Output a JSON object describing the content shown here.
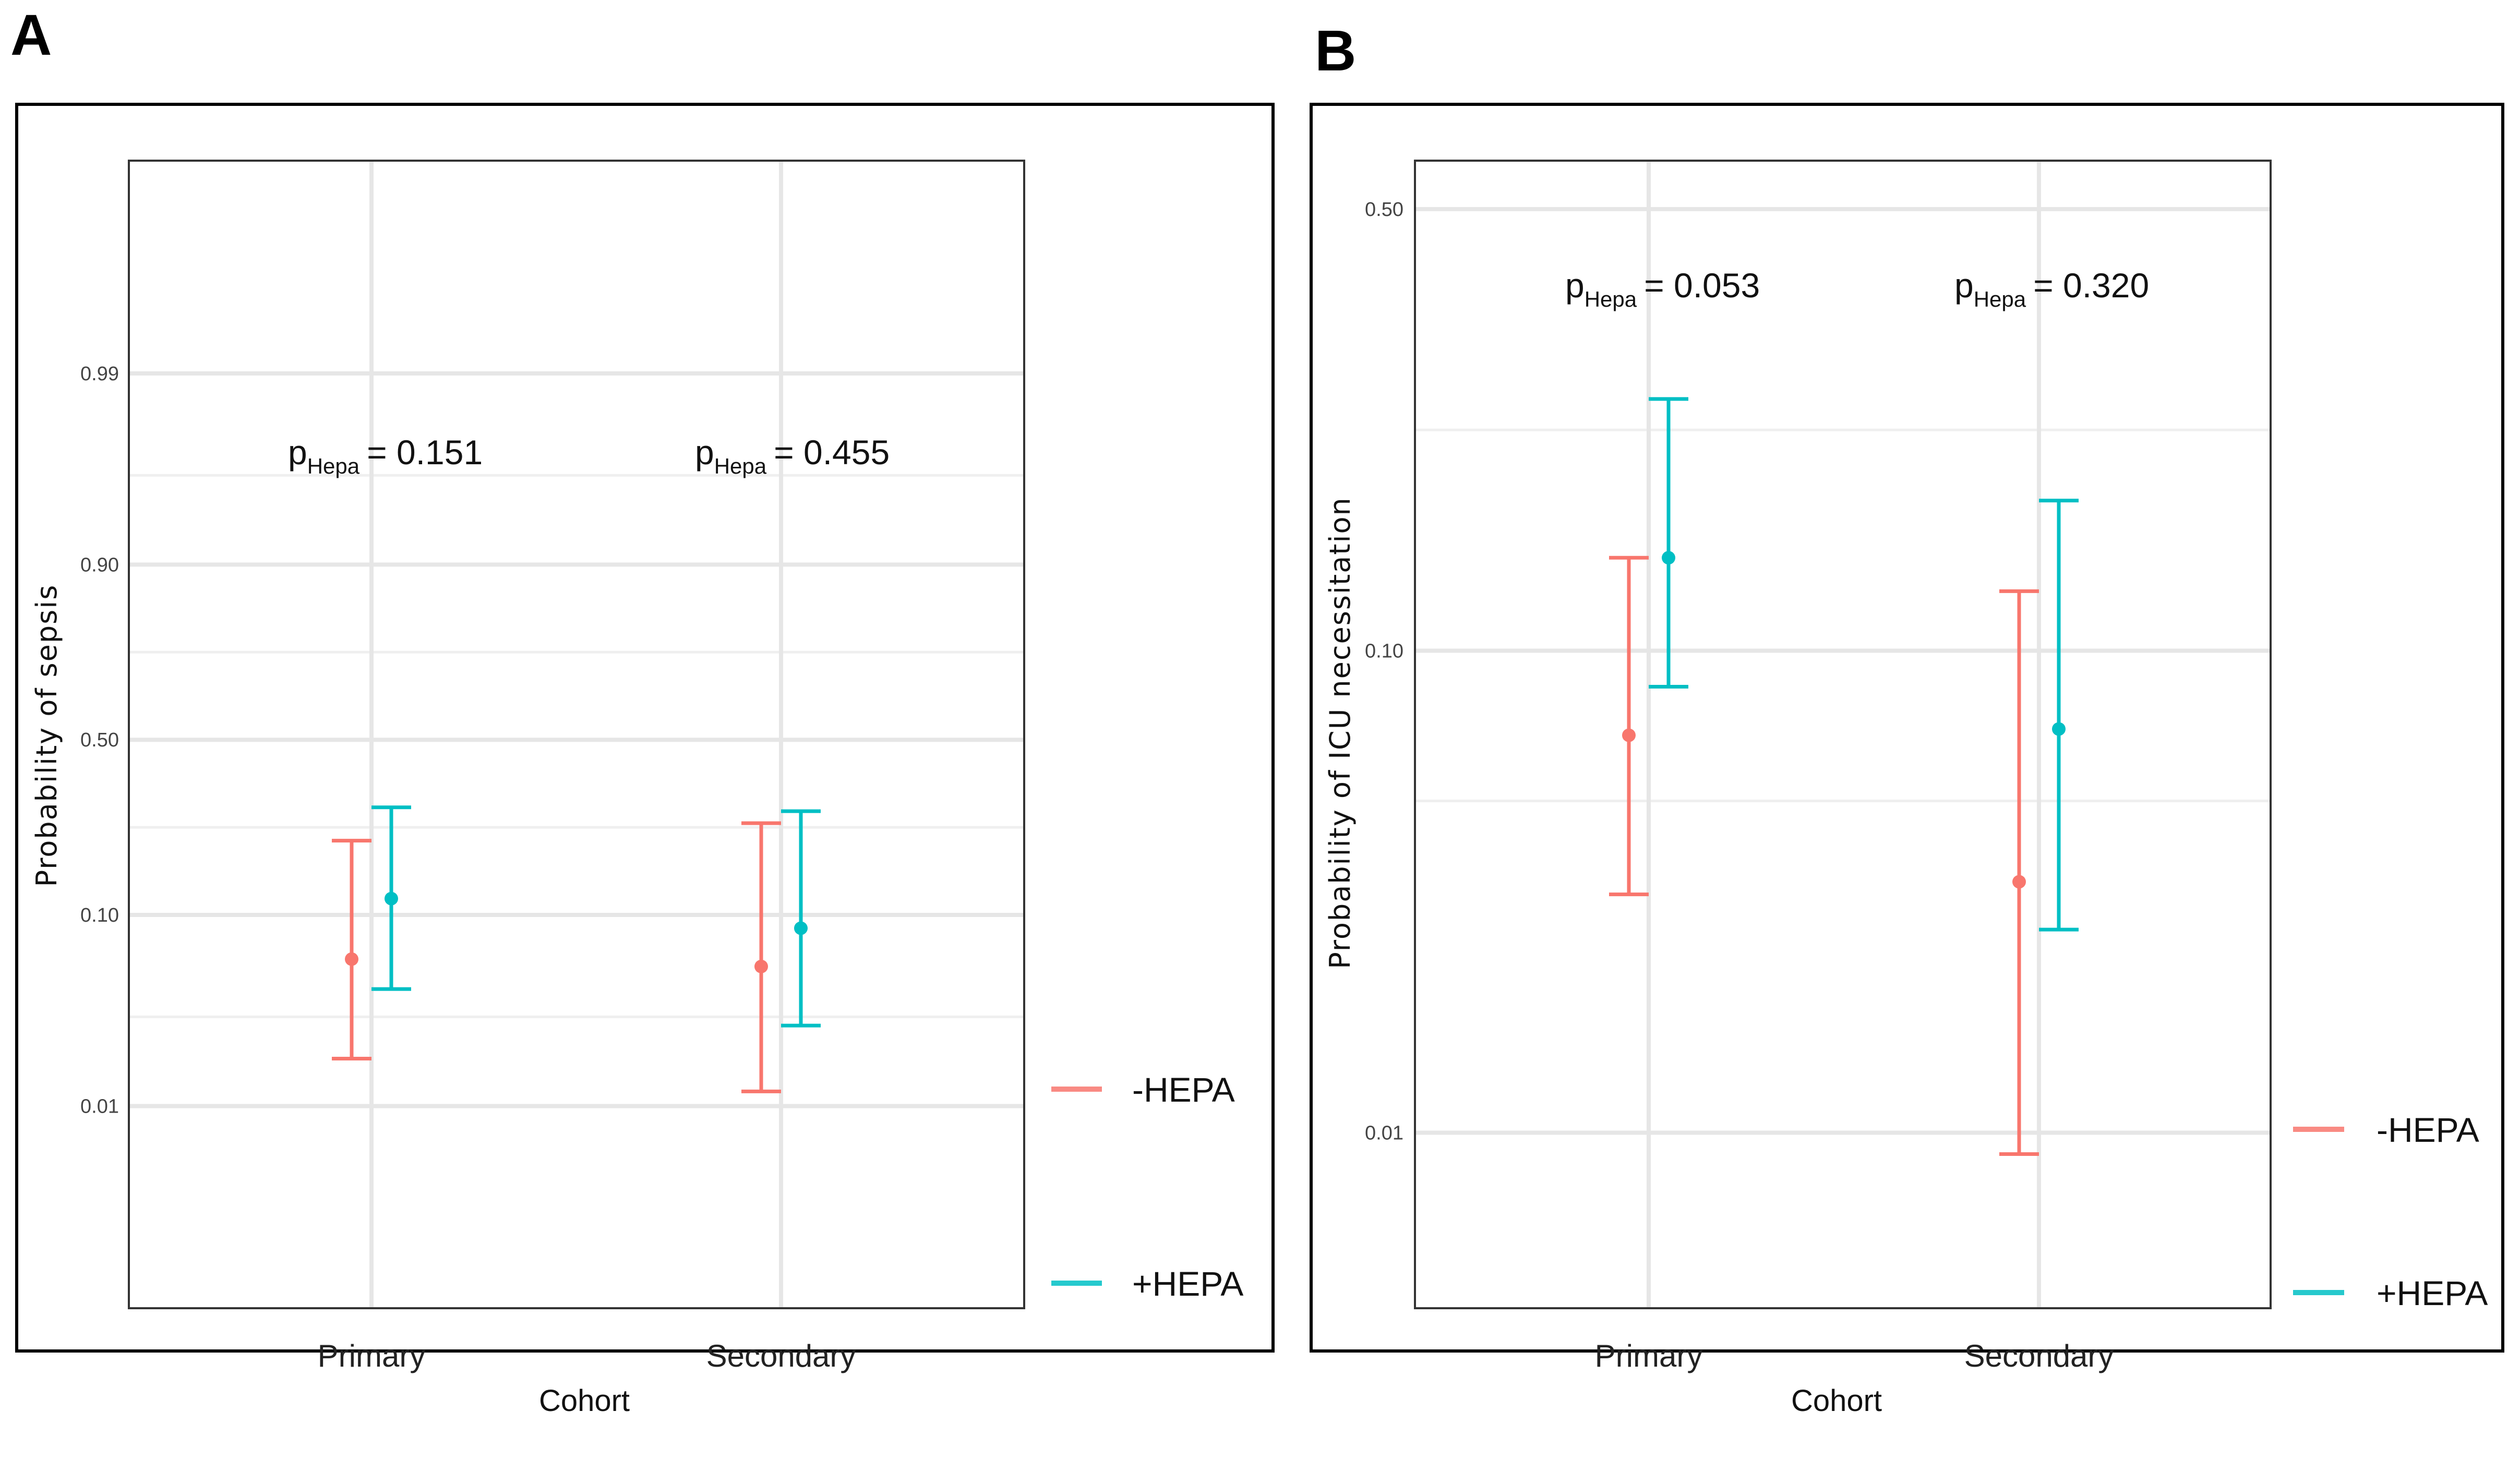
{
  "panels": [
    {
      "letter": "A",
      "chart_data": {
        "type": "errorbar",
        "title": "",
        "xlabel": "Cohort",
        "ylabel": "Probability of sepsis",
        "y_scale": "logit",
        "ylim": [
          0.0008,
          0.9993
        ],
        "y_ticks": [
          0.01,
          0.1,
          0.5,
          0.9,
          0.99
        ],
        "y_tick_labels": [
          "0.01",
          "0.10",
          "0.50",
          "0.90",
          "0.99"
        ],
        "y_minor_ticks": [
          0.03,
          0.25,
          0.75,
          0.965
        ],
        "categories": [
          "Primary",
          "Secondary"
        ],
        "series": [
          {
            "name": "-HEPA",
            "color": "#F8766D",
            "estimates": [
              0.06,
              0.055
            ],
            "lower": [
              0.018,
              0.012
            ],
            "upper": [
              0.22,
              0.26
            ]
          },
          {
            "name": "+HEPA",
            "color": "#00BFC4",
            "estimates": [
              0.12,
              0.086
            ],
            "lower": [
              0.042,
              0.027
            ],
            "upper": [
              0.3,
              0.29
            ]
          }
        ],
        "annotations": [
          {
            "category": "Primary",
            "p_prefix": "p",
            "p_sub": "Hepa",
            "p_value": "= 0.151"
          },
          {
            "category": "Secondary",
            "p_prefix": "p",
            "p_sub": "Hepa",
            "p_value": "= 0.455"
          }
        ],
        "legend": {
          "position": "right",
          "entries": [
            "-HEPA",
            "+HEPA"
          ]
        }
      }
    },
    {
      "letter": "B",
      "chart_data": {
        "type": "errorbar",
        "title": "",
        "xlabel": "Cohort",
        "ylabel": "Probability of ICU necessitation",
        "y_scale": "logit",
        "ylim": [
          0.0042,
          0.56
        ],
        "y_ticks": [
          0.01,
          0.1,
          0.5
        ],
        "y_tick_labels": [
          "0.01",
          "0.10",
          "0.50"
        ],
        "y_minor_ticks": [
          0.05,
          0.25,
          0.56
        ],
        "categories": [
          "Primary",
          "Secondary"
        ],
        "series": [
          {
            "name": "-HEPA",
            "color": "#F8766D",
            "estimates": [
              0.068,
              0.034
            ],
            "lower": [
              0.032,
              0.009
            ],
            "upper": [
              0.15,
              0.13
            ]
          },
          {
            "name": "+HEPA",
            "color": "#00BFC4",
            "estimates": [
              0.15,
              0.07
            ],
            "lower": [
              0.085,
              0.027
            ],
            "upper": [
              0.28,
              0.19
            ]
          }
        ],
        "annotations": [
          {
            "category": "Primary",
            "p_prefix": "p",
            "p_sub": "Hepa",
            "p_value": "= 0.053"
          },
          {
            "category": "Secondary",
            "p_prefix": "p",
            "p_sub": "Hepa",
            "p_value": "= 0.320"
          }
        ],
        "legend": {
          "position": "right",
          "entries": [
            "-HEPA",
            "+HEPA"
          ]
        }
      }
    }
  ]
}
